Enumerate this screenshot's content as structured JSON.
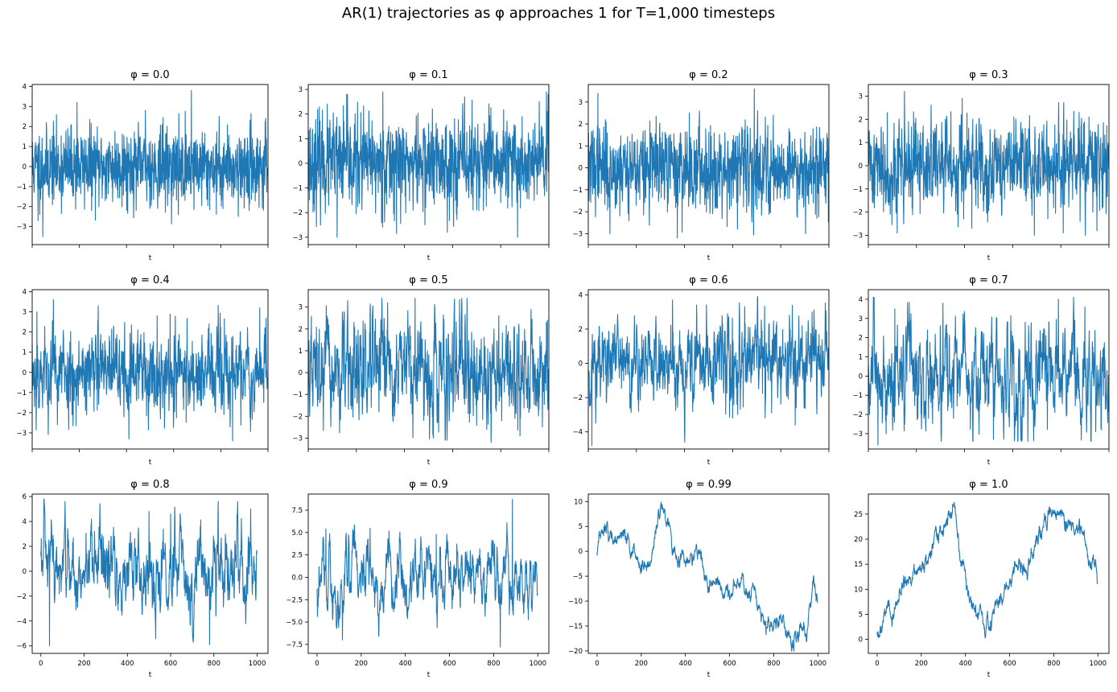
{
  "figure": {
    "title": "AR(1) trajectories as φ approaches 1 for T=1,000 timesteps"
  },
  "style": {
    "line_color": "#1f77b4"
  },
  "chart_data": [
    {
      "type": "line",
      "title": "φ = 0.0",
      "xlabel": "t",
      "ylabel": "",
      "phi": 0.0,
      "xlim": [
        0,
        1000
      ],
      "ylim": [
        -3.9,
        4.1
      ],
      "yticks": [
        -3,
        -2,
        -1,
        0,
        1,
        2,
        3,
        4
      ],
      "yticklabels": [
        "−3",
        "−2",
        "−1",
        "0",
        "1",
        "2",
        "3",
        "4"
      ],
      "xticks": [
        0,
        200,
        400,
        600,
        800,
        1000
      ],
      "xticklabels": [],
      "seed": 11,
      "amp": 0.95,
      "peaks": [
        [
          25,
          -2.7
        ],
        [
          45,
          -3.5
        ],
        [
          190,
          3.2
        ],
        [
          480,
          2.8
        ],
        [
          620,
          -2.4
        ],
        [
          675,
          3.8
        ],
        [
          920,
          -2.2
        ],
        [
          990,
          2.4
        ]
      ]
    },
    {
      "type": "line",
      "title": "φ = 0.1",
      "xlabel": "t",
      "ylabel": "",
      "phi": 0.1,
      "xlim": [
        0,
        1000
      ],
      "ylim": [
        -3.3,
        3.2
      ],
      "yticks": [
        -3,
        -2,
        -1,
        0,
        1,
        2,
        3
      ],
      "yticklabels": [
        "−3",
        "−2",
        "−1",
        "0",
        "1",
        "2",
        "3"
      ],
      "xticks": [
        0,
        200,
        400,
        600,
        800,
        1000
      ],
      "xticklabels": [],
      "seed": 23,
      "amp": 0.95,
      "peaks": [
        [
          120,
          -3.0
        ],
        [
          160,
          2.8
        ],
        [
          310,
          2.9
        ],
        [
          650,
          2.7
        ],
        [
          870,
          -3.0
        ],
        [
          960,
          2.5
        ],
        [
          990,
          2.9
        ]
      ]
    },
    {
      "type": "line",
      "title": "φ = 0.2",
      "xlabel": "t",
      "ylabel": "",
      "phi": 0.2,
      "xlim": [
        0,
        1000
      ],
      "ylim": [
        -3.5,
        3.8
      ],
      "yticks": [
        -3,
        -2,
        -1,
        0,
        1,
        2,
        3
      ],
      "yticklabels": [
        "−3",
        "−2",
        "−1",
        "0",
        "1",
        "2",
        "3"
      ],
      "xticks": [
        0,
        200,
        400,
        600,
        800,
        1000
      ],
      "xticklabels": [],
      "seed": 37,
      "amp": 0.95,
      "peaks": [
        [
          40,
          3.4
        ],
        [
          90,
          -3.0
        ],
        [
          370,
          -3.2
        ],
        [
          420,
          2.5
        ],
        [
          620,
          -2.8
        ],
        [
          690,
          3.6
        ],
        [
          950,
          -2.3
        ]
      ]
    },
    {
      "type": "line",
      "title": "φ = 0.3",
      "xlabel": "t",
      "ylabel": "",
      "phi": 0.3,
      "xlim": [
        0,
        1000
      ],
      "ylim": [
        -3.4,
        3.5
      ],
      "yticks": [
        -3,
        -2,
        -1,
        0,
        1,
        2,
        3
      ],
      "yticklabels": [
        "−3",
        "−2",
        "−1",
        "0",
        "1",
        "2",
        "3"
      ],
      "xticks": [
        0,
        200,
        400,
        600,
        800,
        1000
      ],
      "xticklabels": [],
      "seed": 41,
      "amp": 0.95,
      "peaks": [
        [
          120,
          -2.9
        ],
        [
          150,
          3.2
        ],
        [
          390,
          2.9
        ],
        [
          430,
          -2.7
        ],
        [
          690,
          -3.0
        ],
        [
          810,
          -2.9
        ],
        [
          950,
          -2.8
        ]
      ]
    },
    {
      "type": "line",
      "title": "φ = 0.4",
      "xlabel": "t",
      "ylabel": "",
      "phi": 0.4,
      "xlim": [
        0,
        1000
      ],
      "ylim": [
        -3.8,
        4.1
      ],
      "yticks": [
        -3,
        -2,
        -1,
        0,
        1,
        2,
        3,
        4
      ],
      "yticklabels": [
        "−3",
        "−2",
        "−1",
        "0",
        "1",
        "2",
        "3",
        "4"
      ],
      "xticks": [
        0,
        200,
        400,
        600,
        800,
        1000
      ],
      "xticklabels": [],
      "seed": 53,
      "amp": 1.0,
      "peaks": [
        [
          20,
          3.0
        ],
        [
          90,
          3.6
        ],
        [
          280,
          3.3
        ],
        [
          410,
          -3.3
        ],
        [
          530,
          2.8
        ],
        [
          850,
          -3.4
        ],
        [
          965,
          3.2
        ]
      ]
    },
    {
      "type": "line",
      "title": "φ = 0.5",
      "xlabel": "t",
      "ylabel": "",
      "phi": 0.5,
      "xlim": [
        0,
        1000
      ],
      "ylim": [
        -3.5,
        3.8
      ],
      "yticks": [
        -3,
        -2,
        -1,
        0,
        1,
        2,
        3
      ],
      "yticklabels": [
        "−3",
        "−2",
        "−1",
        "0",
        "1",
        "2",
        "3"
      ],
      "xticks": [
        0,
        200,
        400,
        600,
        800,
        1000
      ],
      "xticklabels": [],
      "seed": 67,
      "amp": 1.0,
      "peaks": [
        [
          330,
          3.2
        ],
        [
          520,
          -3.0
        ],
        [
          660,
          3.4
        ],
        [
          760,
          -3.2
        ],
        [
          880,
          -2.9
        ],
        [
          990,
          2.3
        ]
      ]
    },
    {
      "type": "line",
      "title": "φ = 0.6",
      "xlabel": "t",
      "ylabel": "",
      "phi": 0.6,
      "xlim": [
        0,
        1000
      ],
      "ylim": [
        -5.0,
        4.3
      ],
      "yticks": [
        -4,
        -2,
        0,
        2,
        4
      ],
      "yticklabels": [
        "−4",
        "−2",
        "0",
        "2",
        "4"
      ],
      "xticks": [
        0,
        200,
        400,
        600,
        800,
        1000
      ],
      "xticklabels": [],
      "seed": 71,
      "amp": 1.05,
      "peaks": [
        [
          15,
          -4.8
        ],
        [
          350,
          3.7
        ],
        [
          450,
          3.4
        ],
        [
          600,
          -3.2
        ],
        [
          860,
          -3.6
        ],
        [
          930,
          3.0
        ]
      ]
    },
    {
      "type": "line",
      "title": "φ = 0.7",
      "xlabel": "t",
      "ylabel": "",
      "phi": 0.7,
      "xlim": [
        0,
        1000
      ],
      "ylim": [
        -3.8,
        4.5
      ],
      "yticks": [
        -3,
        -2,
        -1,
        0,
        1,
        2,
        3,
        4
      ],
      "yticklabels": [
        "−3",
        "−2",
        "−1",
        "0",
        "1",
        "2",
        "3",
        "4"
      ],
      "xticks": [
        0,
        200,
        400,
        600,
        800,
        1000
      ],
      "xticklabels": [],
      "seed": 83,
      "amp": 1.05,
      "peaks": [
        [
          40,
          -3.6
        ],
        [
          110,
          3.5
        ],
        [
          310,
          3.8
        ],
        [
          520,
          -3.3
        ],
        [
          790,
          4.0
        ],
        [
          900,
          3.6
        ]
      ]
    },
    {
      "type": "line",
      "title": "φ = 0.8",
      "xlabel": "t",
      "ylabel": "",
      "phi": 0.8,
      "xlim": [
        -40,
        1050
      ],
      "ylim": [
        -6.6,
        6.2
      ],
      "yticks": [
        -6,
        -4,
        -2,
        0,
        2,
        4,
        6
      ],
      "yticklabels": [
        "−6",
        "−4",
        "−2",
        "0",
        "2",
        "4",
        "6"
      ],
      "xticks": [
        0,
        200,
        400,
        600,
        800,
        1000
      ],
      "xticklabels": [
        "0",
        "200",
        "400",
        "600",
        "800",
        "1000"
      ],
      "seed": 97,
      "amp": 1.1,
      "peaks": [
        [
          40,
          -6.0
        ],
        [
          500,
          4.8
        ],
        [
          600,
          4.6
        ],
        [
          780,
          -5.9
        ],
        [
          820,
          5.6
        ],
        [
          970,
          5.0
        ]
      ]
    },
    {
      "type": "line",
      "title": "φ = 0.9",
      "xlabel": "t",
      "ylabel": "",
      "phi": 0.9,
      "xlim": [
        -40,
        1050
      ],
      "ylim": [
        -8.5,
        9.3
      ],
      "yticks": [
        -7.5,
        -5.0,
        -2.5,
        0.0,
        2.5,
        5.0,
        7.5
      ],
      "yticklabels": [
        "−7.5",
        "−5.0",
        "−2.5",
        "0.0",
        "2.5",
        "5.0",
        "7.5"
      ],
      "xticks": [
        0,
        200,
        400,
        600,
        800,
        1000
      ],
      "xticklabels": [
        "0",
        "200",
        "400",
        "600",
        "800",
        "1000"
      ],
      "seed": 103,
      "amp": 1.1,
      "peaks": [
        [
          40,
          5.4
        ],
        [
          115,
          -7.0
        ],
        [
          240,
          5.5
        ],
        [
          540,
          4.8
        ],
        [
          830,
          -7.8
        ],
        [
          885,
          8.7
        ]
      ]
    },
    {
      "type": "line",
      "title": "φ = 0.99",
      "xlabel": "t",
      "ylabel": "",
      "phi": 0.99,
      "xlim": [
        -40,
        1050
      ],
      "ylim": [
        -20.5,
        11.5
      ],
      "yticks": [
        -20,
        -15,
        -10,
        -5,
        0,
        5,
        10
      ],
      "yticklabels": [
        "−20",
        "−15",
        "−10",
        "−5",
        "0",
        "5",
        "10"
      ],
      "xticks": [
        0,
        200,
        400,
        600,
        800,
        1000
      ],
      "xticklabels": [
        "0",
        "200",
        "400",
        "600",
        "800",
        "1000"
      ],
      "seed": 113,
      "amp": 1.0,
      "anchors": [
        [
          0,
          0
        ],
        [
          40,
          2
        ],
        [
          100,
          4
        ],
        [
          130,
          3
        ],
        [
          200,
          -3
        ],
        [
          240,
          -2
        ],
        [
          280,
          7
        ],
        [
          300,
          9
        ],
        [
          330,
          5
        ],
        [
          380,
          -2
        ],
        [
          450,
          0
        ],
        [
          500,
          -6
        ],
        [
          540,
          -5
        ],
        [
          600,
          -9
        ],
        [
          640,
          -5
        ],
        [
          700,
          -9
        ],
        [
          760,
          -14
        ],
        [
          800,
          -16
        ],
        [
          850,
          -15
        ],
        [
          900,
          -17
        ],
        [
          950,
          -18
        ],
        [
          980,
          -6
        ],
        [
          1000,
          -11
        ]
      ],
      "noise": 1.2
    },
    {
      "type": "line",
      "title": "φ = 1.0",
      "xlabel": "t",
      "ylabel": "",
      "phi": 1.0,
      "xlim": [
        -40,
        1050
      ],
      "ylim": [
        -2.8,
        29.0
      ],
      "yticks": [
        0,
        5,
        10,
        15,
        20,
        25
      ],
      "yticklabels": [
        "0",
        "5",
        "10",
        "15",
        "20",
        "25"
      ],
      "xticks": [
        0,
        200,
        400,
        600,
        800,
        1000
      ],
      "xticklabels": [
        "0",
        "200",
        "400",
        "600",
        "800",
        "1000"
      ],
      "seed": 131,
      "amp": 1.0,
      "anchors": [
        [
          0,
          1
        ],
        [
          30,
          4
        ],
        [
          70,
          5
        ],
        [
          120,
          11
        ],
        [
          180,
          14
        ],
        [
          230,
          15
        ],
        [
          280,
          21
        ],
        [
          330,
          24
        ],
        [
          345,
          26
        ],
        [
          370,
          18
        ],
        [
          400,
          12
        ],
        [
          430,
          7
        ],
        [
          470,
          3
        ],
        [
          490,
          0
        ],
        [
          520,
          4
        ],
        [
          560,
          8
        ],
        [
          620,
          14
        ],
        [
          680,
          15
        ],
        [
          730,
          20
        ],
        [
          780,
          26
        ],
        [
          830,
          25
        ],
        [
          870,
          24
        ],
        [
          910,
          23
        ],
        [
          950,
          18
        ],
        [
          980,
          15
        ],
        [
          1000,
          11
        ]
      ],
      "noise": 1.2
    }
  ]
}
